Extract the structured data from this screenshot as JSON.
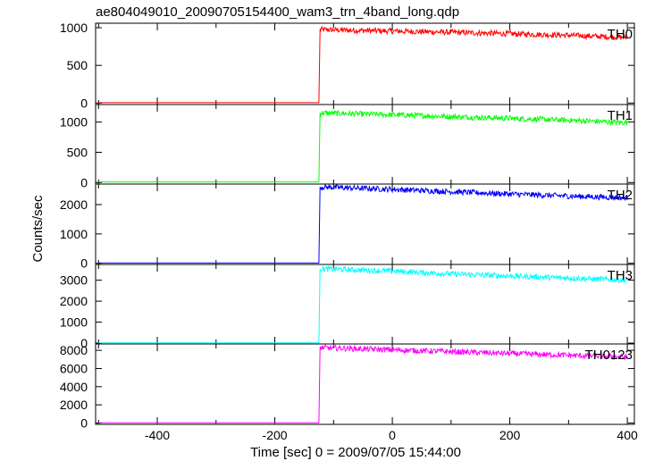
{
  "chart_data": {
    "type": "line",
    "title": "ae804049010_20090705154400_wam3_trn_4band_long.qdp",
    "xlabel": "Time [sec] 0 = 2009/07/05 15:44:00",
    "ylabel": "Counts/sec",
    "xlim": [
      -505,
      412
    ],
    "x_ticks": [
      -400,
      -200,
      0,
      200,
      400
    ],
    "grid": false,
    "series": [
      {
        "name": "TH0",
        "color": "#ff0000",
        "ylim": [
          -20,
          1060
        ],
        "y_ticks": [
          0,
          500,
          1000
        ],
        "x": [
          -500,
          -125,
          -123,
          0,
          100,
          200,
          300,
          400
        ],
        "values": [
          5,
          5,
          975,
          955,
          940,
          920,
          900,
          870
        ]
      },
      {
        "name": "TH1",
        "color": "#00ff00",
        "ylim": [
          -25,
          1290
        ],
        "y_ticks": [
          0,
          500,
          1000
        ],
        "x": [
          -500,
          -125,
          -123,
          0,
          100,
          200,
          300,
          400
        ],
        "values": [
          10,
          10,
          1150,
          1120,
          1090,
          1060,
          1030,
          990
        ]
      },
      {
        "name": "TH2",
        "color": "#0000ff",
        "ylim": [
          -40,
          2700
        ],
        "y_ticks": [
          0,
          1000,
          2000
        ],
        "x": [
          -500,
          -125,
          -123,
          0,
          100,
          200,
          300,
          400
        ],
        "values": [
          10,
          10,
          2600,
          2520,
          2440,
          2360,
          2290,
          2230
        ]
      },
      {
        "name": "TH3",
        "color": "#00ffff",
        "ylim": [
          -40,
          3750
        ],
        "y_ticks": [
          0,
          1000,
          2000,
          3000
        ],
        "x": [
          -500,
          -125,
          -123,
          0,
          100,
          200,
          300,
          400
        ],
        "values": [
          10,
          10,
          3550,
          3430,
          3300,
          3200,
          3100,
          3000
        ]
      },
      {
        "name": "TH0123",
        "color": "#ff00ff",
        "ylim": [
          -150,
          8700
        ],
        "y_ticks": [
          0,
          2000,
          4000,
          6000,
          8000
        ],
        "x": [
          -500,
          -125,
          -123,
          0,
          100,
          200,
          300,
          400
        ],
        "values": [
          30,
          30,
          8300,
          8050,
          7850,
          7650,
          7450,
          7250
        ]
      }
    ]
  }
}
